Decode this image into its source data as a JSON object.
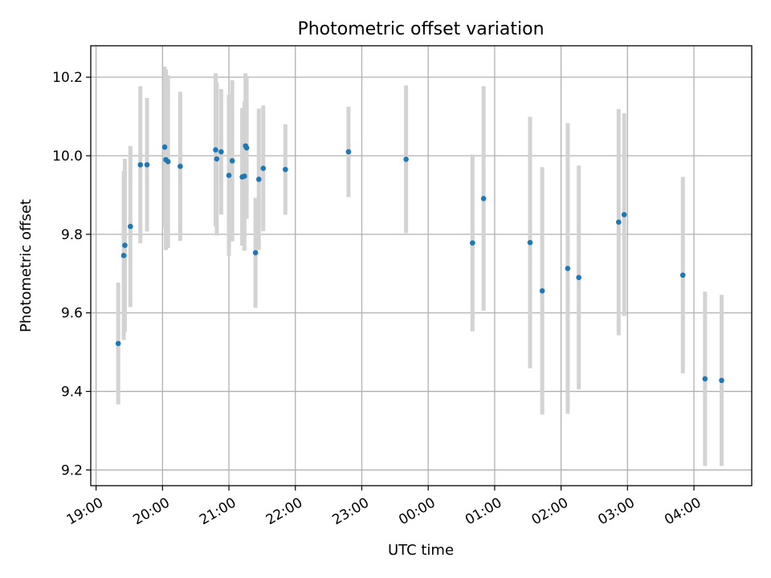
{
  "chart_data": {
    "type": "scatter",
    "title": "Photometric offset variation",
    "xlabel": "UTC time",
    "ylabel": "Photometric offset",
    "x_ticks": [
      "19:00",
      "20:00",
      "21:00",
      "22:00",
      "23:00",
      "00:00",
      "01:00",
      "02:00",
      "03:00",
      "04:00"
    ],
    "y_ticks": [
      "9.2",
      "9.4",
      "9.6",
      "9.8",
      "10.0",
      "10.2"
    ],
    "xlim_hours": [
      18.92,
      28.87
    ],
    "ylim": [
      9.16,
      10.28
    ],
    "grid": true,
    "colors": {
      "point": "#1f77b4",
      "errorbar": "#d3d3d3",
      "grid": "#b0b0b0"
    },
    "points": [
      {
        "t": "19:20",
        "y": 9.522,
        "err": 0.155
      },
      {
        "t": "19:25",
        "y": 9.746,
        "err": 0.215
      },
      {
        "t": "19:26",
        "y": 9.772,
        "err": 0.22
      },
      {
        "t": "19:31",
        "y": 9.82,
        "err": 0.205
      },
      {
        "t": "19:40",
        "y": 9.977,
        "err": 0.2
      },
      {
        "t": "19:46",
        "y": 9.977,
        "err": 0.17
      },
      {
        "t": "20:02",
        "y": 10.022,
        "err": 0.205
      },
      {
        "t": "20:03",
        "y": 9.99,
        "err": 0.23
      },
      {
        "t": "20:05",
        "y": 9.985,
        "err": 0.22
      },
      {
        "t": "20:16",
        "y": 9.973,
        "err": 0.19
      },
      {
        "t": "20:48",
        "y": 10.015,
        "err": 0.195
      },
      {
        "t": "20:49",
        "y": 9.992,
        "err": 0.195
      },
      {
        "t": "20:53",
        "y": 10.01,
        "err": 0.16
      },
      {
        "t": "21:00",
        "y": 9.95,
        "err": 0.205
      },
      {
        "t": "21:03",
        "y": 9.987,
        "err": 0.205
      },
      {
        "t": "21:12",
        "y": 9.946,
        "err": 0.175
      },
      {
        "t": "21:14",
        "y": 9.948,
        "err": 0.19
      },
      {
        "t": "21:15",
        "y": 10.025,
        "err": 0.185
      },
      {
        "t": "21:16",
        "y": 10.02,
        "err": 0.18
      },
      {
        "t": "21:24",
        "y": 9.753,
        "err": 0.14
      },
      {
        "t": "21:27",
        "y": 9.94,
        "err": 0.18
      },
      {
        "t": "21:31",
        "y": 9.968,
        "err": 0.16
      },
      {
        "t": "21:51",
        "y": 9.965,
        "err": 0.115
      },
      {
        "t": "22:48",
        "y": 10.01,
        "err": 0.115
      },
      {
        "t": "23:40",
        "y": 9.991,
        "err": 0.188
      },
      {
        "t": "00:40",
        "y": 9.778,
        "err": 0.225
      },
      {
        "t": "00:50",
        "y": 9.891,
        "err": 0.286
      },
      {
        "t": "01:32",
        "y": 9.779,
        "err": 0.32
      },
      {
        "t": "01:43",
        "y": 9.656,
        "err": 0.315
      },
      {
        "t": "02:06",
        "y": 9.713,
        "err": 0.37
      },
      {
        "t": "02:16",
        "y": 9.69,
        "err": 0.285
      },
      {
        "t": "02:52",
        "y": 9.831,
        "err": 0.288
      },
      {
        "t": "02:57",
        "y": 9.85,
        "err": 0.258
      },
      {
        "t": "03:50",
        "y": 9.696,
        "err": 0.25
      },
      {
        "t": "04:10",
        "y": 9.432,
        "err": 0.222
      },
      {
        "t": "04:25",
        "y": 9.428,
        "err": 0.218
      }
    ]
  }
}
